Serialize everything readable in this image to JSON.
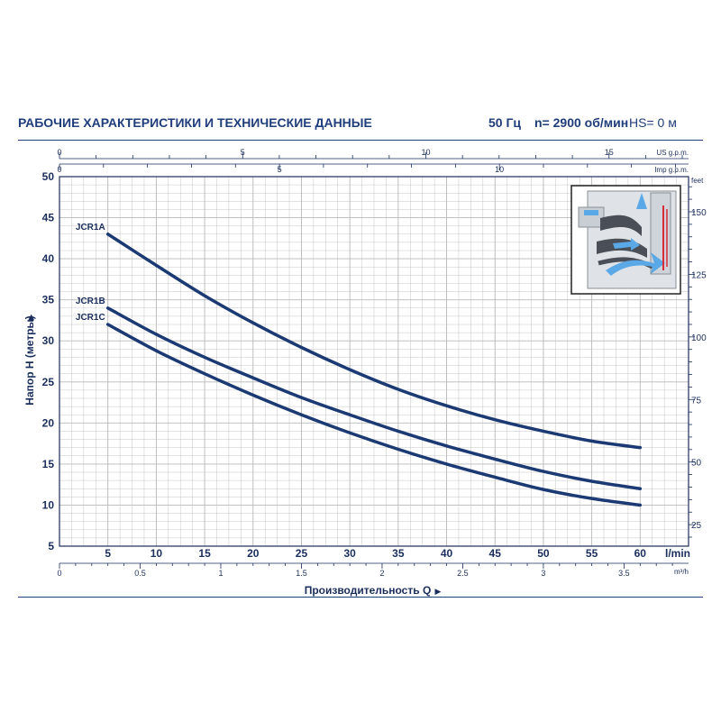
{
  "header": {
    "title": "РАБОЧИЕ ХАРАКТЕРИСТИКИ И ТЕХНИЧЕСКИЕ ДАННЫЕ",
    "frequency": "50 Гц",
    "speed": "n= 2900 об/мин",
    "suction": "HS= 0 м"
  },
  "colors": {
    "curve": "#1b3a73",
    "grid": "#b8b8b8",
    "text": "#1a2e5c",
    "accent_blue": "#5aa9e6",
    "accent_red": "#d92a3a"
  },
  "chart_data": {
    "type": "line",
    "xlabel": "Производительность Q",
    "ylabel": "Напор H (метры)",
    "x_unit": "l/min",
    "xlim": [
      0,
      65
    ],
    "ylim": [
      5,
      50
    ],
    "x_ticks": [
      5,
      10,
      15,
      20,
      25,
      30,
      35,
      40,
      45,
      50,
      55,
      60
    ],
    "y_ticks": [
      5,
      10,
      15,
      20,
      25,
      30,
      35,
      40,
      45,
      50
    ],
    "grid": true,
    "series": [
      {
        "name": "JCR1A",
        "x": [
          5,
          10,
          15,
          20,
          25,
          30,
          35,
          40,
          45,
          50,
          55,
          60
        ],
        "y": [
          43,
          39.2,
          35.5,
          32.2,
          29.2,
          26.5,
          24.1,
          22.1,
          20.4,
          19,
          17.8,
          17
        ]
      },
      {
        "name": "JCR1B",
        "x": [
          5,
          10,
          15,
          20,
          25,
          30,
          35,
          40,
          45,
          50,
          55,
          60
        ],
        "y": [
          34,
          30.8,
          28,
          25.5,
          23.1,
          21,
          19,
          17.2,
          15.6,
          14.1,
          12.9,
          12
        ]
      },
      {
        "name": "JCR1C",
        "x": [
          5,
          10,
          15,
          20,
          25,
          30,
          35,
          40,
          45,
          50,
          55,
          60
        ],
        "y": [
          32,
          28.8,
          26,
          23.4,
          21,
          18.8,
          16.8,
          15,
          13.4,
          11.9,
          10.8,
          10
        ]
      }
    ],
    "secondary_axes": {
      "us_gpm": {
        "label": "US g.p.m.",
        "ticks": [
          0,
          5,
          10,
          15
        ]
      },
      "imp_gpm": {
        "label": "Imp g.p.m.",
        "ticks": [
          0,
          5,
          10
        ]
      },
      "feet": {
        "label": "feet",
        "ticks": [
          25,
          50,
          75,
          100,
          125,
          150
        ]
      },
      "m3h": {
        "label": "m³/h",
        "ticks": [
          0,
          0.5,
          1,
          1.5,
          2,
          2.5,
          3,
          3.5
        ]
      }
    }
  }
}
